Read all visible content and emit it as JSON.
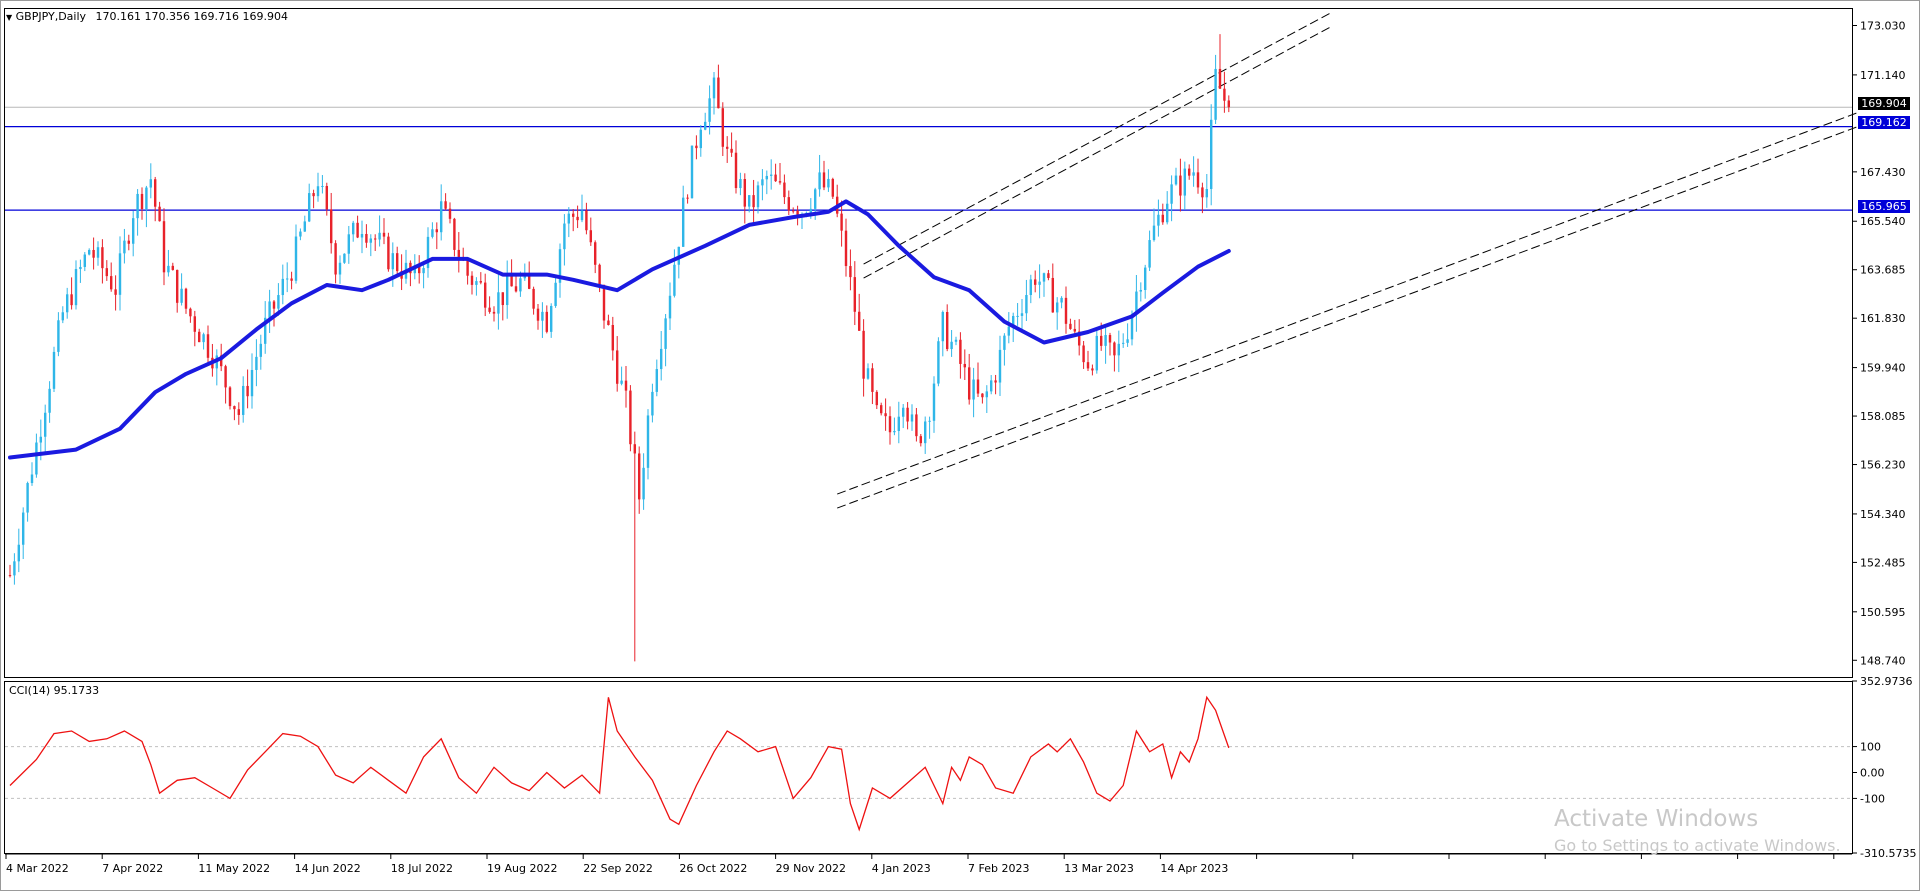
{
  "chart_header": {
    "symbol_timeframe": "GBPJPY,Daily",
    "ohlc": "170.161 170.356 169.716 169.904"
  },
  "price_axis": {
    "labels": [
      "173.030",
      "171.140",
      "167.430",
      "165.540",
      "163.685",
      "161.830",
      "159.940",
      "158.085",
      "156.230",
      "154.340",
      "152.485",
      "150.595",
      "148.740"
    ],
    "range": [
      148.1,
      173.7
    ]
  },
  "price_tags": {
    "current": "169.904",
    "level_upper": "169.162",
    "level_lower": "165.965"
  },
  "horizontal_levels": [
    169.162,
    165.965
  ],
  "colors": {
    "up_candle": "#2fb6e8",
    "down_candle": "#e8222a",
    "moving_average": "#1a1ae0",
    "level_line": "#0000d8",
    "cci_line": "#ee1111"
  },
  "cci_panel": {
    "label": "CCI(14) 95.1733",
    "axis_labels": [
      "352.9736",
      "100",
      "0.00",
      "-100",
      "-310.5735"
    ],
    "range": [
      -310.5735,
      352.9736
    ]
  },
  "time_axis": {
    "labels": [
      "4 Mar 2022",
      "7 Apr 2022",
      "11 May 2022",
      "14 Jun 2022",
      "18 Jul 2022",
      "19 Aug 2022",
      "22 Sep 2022",
      "26 Oct 2022",
      "29 Nov 2022",
      "4 Jan 2023",
      "7 Feb 2023",
      "13 Mar 2023",
      "14 Apr 2023"
    ]
  },
  "chart_data": {
    "type": "candlestick",
    "symbol": "GBPJPY",
    "timeframe": "Daily",
    "date_range": [
      "4 Mar 2022",
      "24 Apr 2023"
    ],
    "visible_range_high": 172.7,
    "visible_range_low": 148.7,
    "last_ohlc": [
      170.161,
      170.356,
      169.716,
      169.904
    ],
    "close_path": [
      [
        0,
        152.0
      ],
      [
        6,
        157.0
      ],
      [
        12,
        162.0
      ],
      [
        18,
        164.5
      ],
      [
        24,
        163.0
      ],
      [
        28,
        166.0
      ],
      [
        32,
        167.2
      ],
      [
        35,
        164.0
      ],
      [
        40,
        162.2
      ],
      [
        46,
        160.5
      ],
      [
        52,
        158.2
      ],
      [
        58,
        161.5
      ],
      [
        64,
        163.8
      ],
      [
        70,
        167.2
      ],
      [
        74,
        164.0
      ],
      [
        80,
        165.5
      ],
      [
        86,
        164.2
      ],
      [
        92,
        163.3
      ],
      [
        98,
        166.0
      ],
      [
        104,
        163.5
      ],
      [
        110,
        162.5
      ],
      [
        116,
        163.2
      ],
      [
        122,
        161.8
      ],
      [
        126,
        165.5
      ],
      [
        130,
        166.0
      ],
      [
        135,
        162.0
      ],
      [
        140,
        158.5
      ],
      [
        143,
        155.0
      ],
      [
        146,
        159.5
      ],
      [
        150,
        163.0
      ],
      [
        154,
        167.0
      ],
      [
        157,
        169.5
      ],
      [
        160,
        170.5
      ],
      [
        163,
        168.0
      ],
      [
        168,
        166.0
      ],
      [
        172,
        167.2
      ],
      [
        176,
        166.5
      ],
      [
        180,
        166.0
      ],
      [
        184,
        167.0
      ],
      [
        187,
        166.5
      ],
      [
        190,
        164.0
      ],
      [
        192,
        162.2
      ],
      [
        194,
        160.0
      ],
      [
        197,
        158.0
      ],
      [
        200,
        157.5
      ],
      [
        203,
        159.0
      ],
      [
        206,
        157.0
      ],
      [
        209,
        158.5
      ],
      [
        212,
        161.5
      ],
      [
        215,
        160.5
      ],
      [
        218,
        159.2
      ],
      [
        221,
        158.5
      ],
      [
        224,
        159.8
      ],
      [
        227,
        161.5
      ],
      [
        230,
        162.5
      ],
      [
        233,
        163.5
      ],
      [
        236,
        162.8
      ],
      [
        239,
        162.3
      ],
      [
        242,
        161.0
      ],
      [
        245,
        160.2
      ],
      [
        248,
        160.8
      ],
      [
        251,
        160.2
      ],
      [
        254,
        161.5
      ],
      [
        257,
        163.5
      ],
      [
        260,
        165.2
      ],
      [
        263,
        166.5
      ],
      [
        266,
        167.0
      ],
      [
        269,
        167.5
      ],
      [
        272,
        166.8
      ],
      [
        274,
        171.0
      ],
      [
        276,
        170.2
      ],
      [
        277,
        169.9
      ]
    ],
    "ma_path": [
      [
        0,
        156.5
      ],
      [
        15,
        156.8
      ],
      [
        25,
        157.6
      ],
      [
        33,
        159.0
      ],
      [
        40,
        159.7
      ],
      [
        48,
        160.3
      ],
      [
        56,
        161.4
      ],
      [
        64,
        162.4
      ],
      [
        72,
        163.1
      ],
      [
        80,
        162.9
      ],
      [
        86,
        163.3
      ],
      [
        96,
        164.1
      ],
      [
        104,
        164.1
      ],
      [
        112,
        163.5
      ],
      [
        122,
        163.5
      ],
      [
        128,
        163.3
      ],
      [
        138,
        162.9
      ],
      [
        146,
        163.7
      ],
      [
        158,
        164.6
      ],
      [
        168,
        165.4
      ],
      [
        178,
        165.7
      ],
      [
        186,
        165.9
      ],
      [
        190,
        166.3
      ],
      [
        195,
        165.8
      ],
      [
        202,
        164.6
      ],
      [
        210,
        163.4
      ],
      [
        218,
        162.9
      ],
      [
        226,
        161.7
      ],
      [
        235,
        160.9
      ],
      [
        245,
        161.3
      ],
      [
        255,
        161.9
      ],
      [
        262,
        162.8
      ],
      [
        270,
        163.8
      ],
      [
        277,
        164.4
      ]
    ],
    "horizontal_levels": [
      169.162,
      165.965
    ],
    "indicator": {
      "name": "CCI(14)",
      "last_value": 95.1733,
      "levels": [
        100,
        0,
        -100
      ],
      "path": [
        [
          0,
          -50
        ],
        [
          6,
          50
        ],
        [
          10,
          150
        ],
        [
          14,
          160
        ],
        [
          18,
          120
        ],
        [
          22,
          130
        ],
        [
          26,
          160
        ],
        [
          30,
          120
        ],
        [
          32,
          30
        ],
        [
          34,
          -80
        ],
        [
          38,
          -30
        ],
        [
          42,
          -20
        ],
        [
          46,
          -60
        ],
        [
          50,
          -100
        ],
        [
          54,
          10
        ],
        [
          58,
          80
        ],
        [
          62,
          150
        ],
        [
          66,
          140
        ],
        [
          70,
          100
        ],
        [
          74,
          -10
        ],
        [
          78,
          -40
        ],
        [
          82,
          20
        ],
        [
          86,
          -30
        ],
        [
          90,
          -80
        ],
        [
          94,
          60
        ],
        [
          98,
          130
        ],
        [
          102,
          -20
        ],
        [
          106,
          -80
        ],
        [
          110,
          20
        ],
        [
          114,
          -40
        ],
        [
          118,
          -70
        ],
        [
          122,
          0
        ],
        [
          126,
          -60
        ],
        [
          130,
          -10
        ],
        [
          134,
          -80
        ],
        [
          136,
          290
        ],
        [
          138,
          160
        ],
        [
          142,
          60
        ],
        [
          146,
          -30
        ],
        [
          150,
          -180
        ],
        [
          152,
          -200
        ],
        [
          156,
          -50
        ],
        [
          160,
          80
        ],
        [
          163,
          160
        ],
        [
          166,
          130
        ],
        [
          170,
          80
        ],
        [
          174,
          100
        ],
        [
          178,
          -100
        ],
        [
          182,
          -20
        ],
        [
          186,
          100
        ],
        [
          189,
          90
        ],
        [
          191,
          -120
        ],
        [
          193,
          -220
        ],
        [
          196,
          -60
        ],
        [
          200,
          -100
        ],
        [
          204,
          -40
        ],
        [
          208,
          20
        ],
        [
          212,
          -120
        ],
        [
          214,
          20
        ],
        [
          216,
          -30
        ],
        [
          218,
          60
        ],
        [
          221,
          30
        ],
        [
          224,
          -60
        ],
        [
          228,
          -80
        ],
        [
          232,
          60
        ],
        [
          236,
          110
        ],
        [
          238,
          80
        ],
        [
          241,
          130
        ],
        [
          244,
          40
        ],
        [
          247,
          -80
        ],
        [
          250,
          -110
        ],
        [
          253,
          -50
        ],
        [
          256,
          160
        ],
        [
          259,
          80
        ],
        [
          262,
          110
        ],
        [
          264,
          -20
        ],
        [
          266,
          80
        ],
        [
          268,
          40
        ],
        [
          270,
          130
        ],
        [
          272,
          290
        ],
        [
          274,
          240
        ],
        [
          277,
          95
        ]
      ]
    },
    "trend_channels": [
      {
        "kind": "upper_pair",
        "start": [
          194,
          163.9
        ],
        "end": [
          300,
          173.5
        ]
      },
      {
        "kind": "lower_pair",
        "start": [
          188,
          155.1
        ],
        "end": [
          420,
          169.7
        ]
      }
    ]
  }
}
